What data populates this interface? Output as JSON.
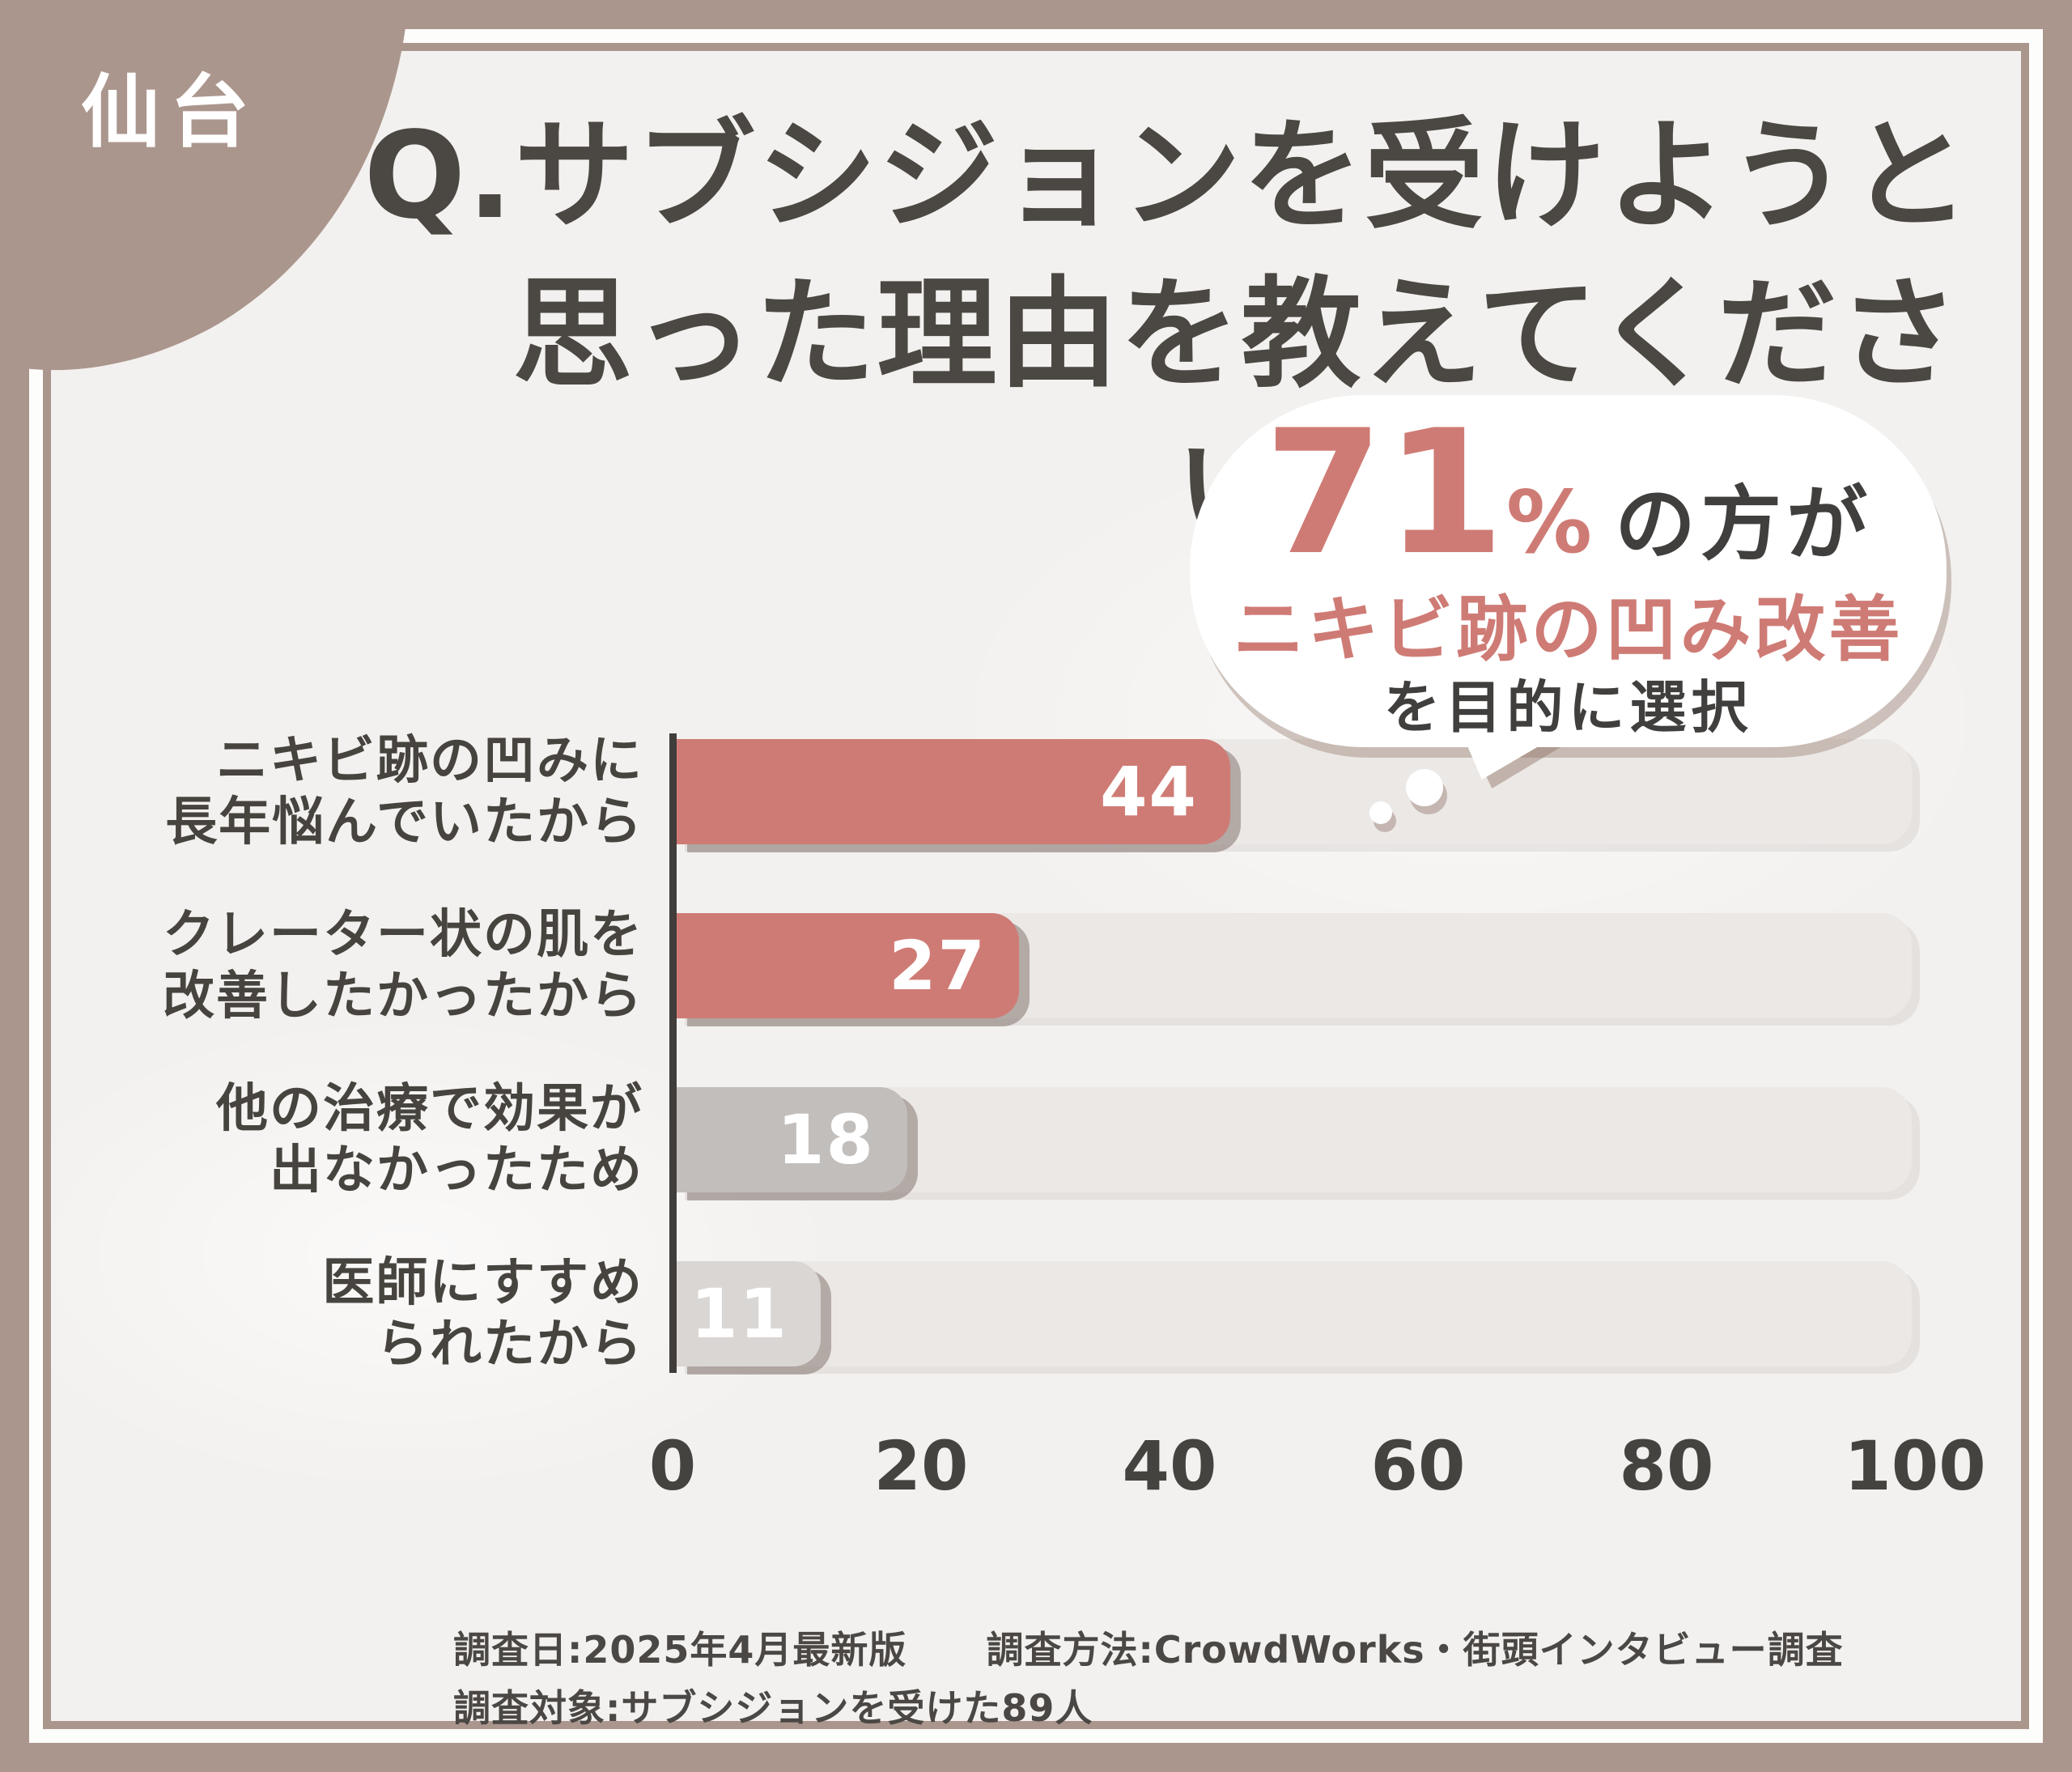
{
  "badge": {
    "label": "仙台"
  },
  "title": {
    "line1": "Q.サブシジョンを受けようと",
    "line2": "思った理由を教えてください"
  },
  "bubble": {
    "stat_value": "71",
    "stat_unit": "%",
    "stat_suffix": "の方が",
    "highlight": "ニキビ跡の凹み改善",
    "purpose": "を目的に選択"
  },
  "chart_data": {
    "type": "bar",
    "orientation": "horizontal",
    "title": "Q.サブシジョンを受けようと思った理由を教えてください",
    "categories": [
      "ニキビ跡の凹みに長年悩んでいたから",
      "クレーター状の肌を改善したかったから",
      "他の治療で効果が出なかったため",
      "医師にすすめられたから"
    ],
    "categories_lines": [
      [
        "ニキビ跡の凹みに",
        "長年悩んでいたから"
      ],
      [
        "クレーター状の肌を",
        "改善したかったから"
      ],
      [
        "他の治療で効果が",
        "出なかったため"
      ],
      [
        "医師にすすめ",
        "られたから"
      ]
    ],
    "values": [
      44,
      27,
      18,
      11
    ],
    "bar_colors": [
      "#cf7b75",
      "#cf7b75",
      "#c2bebc",
      "#d9d6d4"
    ],
    "track_color": "#ebe8e6",
    "xlim": [
      0,
      100
    ],
    "x_ticks": [
      0,
      20,
      40,
      60,
      80,
      100
    ],
    "grid": false,
    "legend": false
  },
  "footer": {
    "line1_left": "調査日:2025年4月最新版",
    "line1_right": "調査方法:CrowdWorks・街頭インタビュー調査",
    "line2": "調査対象:サブシジョンを受けた89人"
  },
  "colors": {
    "frame_mauve": "#ab968d",
    "accent_salmon": "#cf7b75",
    "bar_gray": "#c2bebc",
    "bar_light_gray": "#d9d6d4",
    "text_dark": "#47443f",
    "bubble_white": "#ffffff"
  }
}
